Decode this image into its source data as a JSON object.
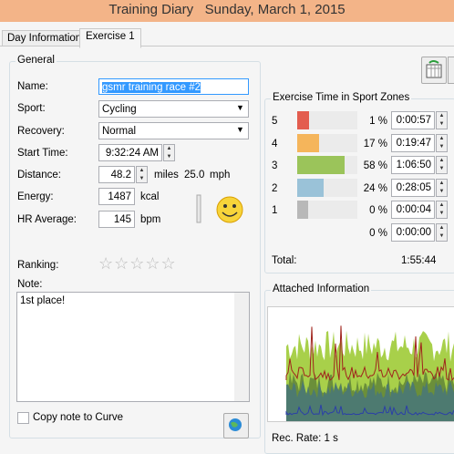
{
  "window": {
    "title": "Training Diary   Sunday, March 1, 2015"
  },
  "tabs": [
    "Day Information",
    "Exercise 1"
  ],
  "general": {
    "group_title": "General",
    "name": {
      "label": "Name:",
      "value": "gsmr training race #2"
    },
    "sport": {
      "label": "Sport:",
      "value": "Cycling"
    },
    "recovery": {
      "label": "Recovery:",
      "value": "Normal"
    },
    "start_time": {
      "label": "Start Time:",
      "value": "9:32:24 AM"
    },
    "distance": {
      "label": "Distance:",
      "value": "48.2",
      "unit": "miles",
      "speed": "25.0",
      "speed_unit": "mph"
    },
    "energy": {
      "label": "Energy:",
      "value": "1487",
      "unit": "kcal"
    },
    "hr_average": {
      "label": "HR Average:",
      "value": "145",
      "unit": "bpm"
    },
    "ranking": {
      "label": "Ranking:"
    },
    "note": {
      "label": "Note:",
      "value": "1st place!"
    },
    "copy_note": {
      "label": "Copy note to Curve"
    }
  },
  "zones": {
    "group_title": "Exercise Time in Sport Zones",
    "labels": [
      "5",
      "4",
      "3",
      "2",
      "1",
      null
    ],
    "values": [
      1,
      17,
      58,
      24,
      0,
      0
    ],
    "value_labels": [
      "1 %",
      "17 %",
      "58 %",
      "24 %",
      "0 %",
      "0 %"
    ],
    "times": [
      "0:00:57",
      "0:19:47",
      "1:06:50",
      "0:28:05",
      "0:00:04",
      "0:00:00"
    ],
    "colors": [
      "#e35d4f",
      "#f5b55b",
      "#9bc45a",
      "#9ac2d8",
      "#b8b8b8",
      null
    ],
    "total_label": "Total:",
    "total": "1:55:44"
  },
  "attached": {
    "group_title": "Attached Information",
    "rec_rate": "Rec. Rate: 1 s"
  }
}
